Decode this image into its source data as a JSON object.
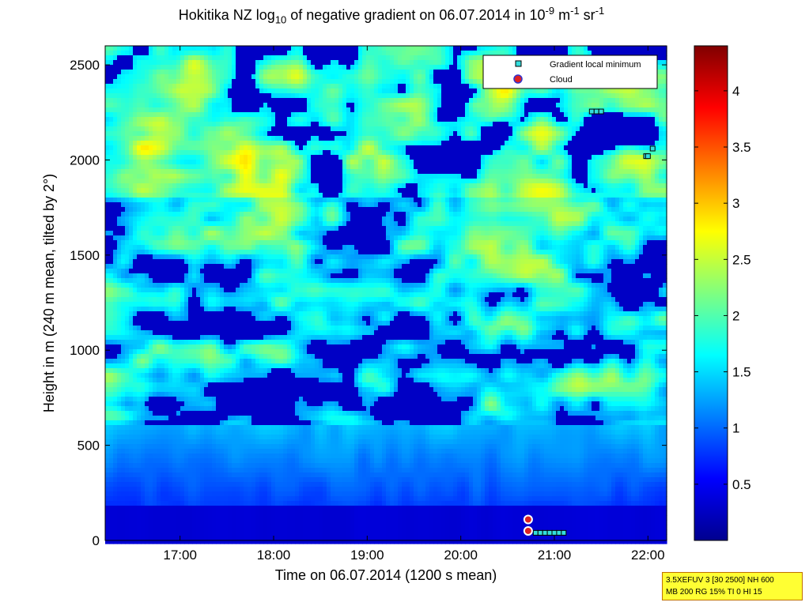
{
  "title": {
    "part1": "Hokitika NZ log",
    "sub": "10",
    "part2": " of negative gradient on 06.07.2014 in 10",
    "sup1": "-9",
    "part3": " m",
    "sup2": "-1",
    "part4": " sr",
    "sup3": "-1"
  },
  "info_box": {
    "line1": "3.5XEFUV 3 [30 2500] NH 600",
    "line2": "MB 200 RG 15% TI 0 HI 15"
  },
  "chart_data": {
    "type": "heatmap",
    "xlabel": "Time on 06.07.2014 (1200 s mean)",
    "ylabel": "Height in m (240 m mean, tilted by 2°)",
    "xlim_hours": [
      16.2,
      22.2
    ],
    "ylim": [
      0,
      2600
    ],
    "x_ticks": [
      {
        "value": 17,
        "label": "17:00"
      },
      {
        "value": 18,
        "label": "18:00"
      },
      {
        "value": 19,
        "label": "19:00"
      },
      {
        "value": 20,
        "label": "20:00"
      },
      {
        "value": 21,
        "label": "21:00"
      },
      {
        "value": 22,
        "label": "22:00"
      }
    ],
    "y_ticks": [
      {
        "value": 0,
        "label": "0"
      },
      {
        "value": 500,
        "label": "500"
      },
      {
        "value": 1000,
        "label": "1000"
      },
      {
        "value": 1500,
        "label": "1500"
      },
      {
        "value": 2000,
        "label": "2000"
      },
      {
        "value": 2500,
        "label": "2500"
      }
    ],
    "colorbar": {
      "range": [
        0,
        4.4
      ],
      "colormap": "jet",
      "ticks": [
        {
          "value": 0.5,
          "label": "0.5"
        },
        {
          "value": 1,
          "label": "1"
        },
        {
          "value": 1.5,
          "label": "1.5"
        },
        {
          "value": 2,
          "label": "2"
        },
        {
          "value": 2.5,
          "label": "2.5"
        },
        {
          "value": 3,
          "label": "3"
        },
        {
          "value": 3.5,
          "label": "3.5"
        },
        {
          "value": 4,
          "label": "4"
        }
      ]
    },
    "legend": {
      "placement": "top-right",
      "entries": [
        {
          "name": "Gradient local minimum",
          "marker": "square",
          "color": "#33dddd"
        },
        {
          "name": "Cloud",
          "marker": "circle",
          "color": "#dd2222"
        }
      ]
    },
    "gradient_local_minima": [
      {
        "x": 21.4,
        "y": 2255
      },
      {
        "x": 21.45,
        "y": 2255
      },
      {
        "x": 21.5,
        "y": 2255
      },
      {
        "x": 21.98,
        "y": 2020
      },
      {
        "x": 22.0,
        "y": 2020
      },
      {
        "x": 22.05,
        "y": 2060
      },
      {
        "x": 20.8,
        "y": 40
      },
      {
        "x": 20.85,
        "y": 40
      },
      {
        "x": 20.9,
        "y": 40
      },
      {
        "x": 20.95,
        "y": 40
      },
      {
        "x": 21.0,
        "y": 40
      },
      {
        "x": 21.05,
        "y": 40
      },
      {
        "x": 21.1,
        "y": 40
      }
    ],
    "clouds": [
      {
        "x": 20.72,
        "y": 110
      },
      {
        "x": 20.72,
        "y": 50
      }
    ]
  }
}
